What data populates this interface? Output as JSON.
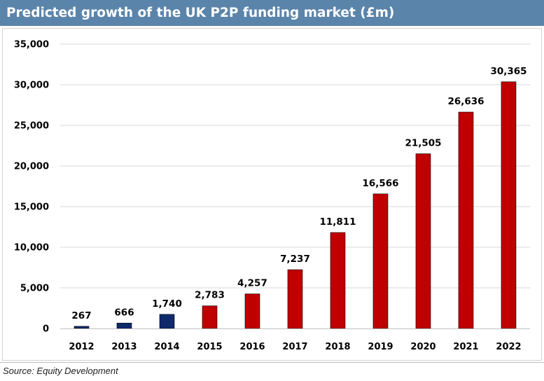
{
  "header": {
    "title": "Predicted growth of the UK P2P funding market (£m)"
  },
  "footer": {
    "source": "Source: Equity Development"
  },
  "colors": {
    "title_bg": "#5b84aa",
    "actual_bar": "#0f2a6b",
    "forecast_bar": "#c00000",
    "grid": "#d9d9d9"
  },
  "chart_data": {
    "type": "bar",
    "title": "Predicted growth of the UK P2P funding market (£m)",
    "xlabel": "",
    "ylabel": "",
    "ylim": [
      0,
      35000
    ],
    "yticks": [
      0,
      5000,
      10000,
      15000,
      20000,
      25000,
      30000,
      35000
    ],
    "ytick_labels": [
      "0",
      "5,000",
      "10,000",
      "15,000",
      "20,000",
      "25,000",
      "30,000",
      "35,000"
    ],
    "grid": true,
    "legend": "none",
    "categories": [
      "2012",
      "2013",
      "2014",
      "2015",
      "2016",
      "2017",
      "2018",
      "2019",
      "2020",
      "2021",
      "2022"
    ],
    "values": [
      267,
      666,
      1740,
      2783,
      4257,
      7237,
      11811,
      16566,
      21505,
      26636,
      30365
    ],
    "data_labels": [
      "267",
      "666",
      "1,740",
      "2,783",
      "4,257",
      "7,237",
      "11,811",
      "16,566",
      "21,505",
      "26,636",
      "30,365"
    ],
    "bar_colors": [
      "#0f2a6b",
      "#0f2a6b",
      "#0f2a6b",
      "#c00000",
      "#c00000",
      "#c00000",
      "#c00000",
      "#c00000",
      "#c00000",
      "#c00000",
      "#c00000"
    ]
  }
}
